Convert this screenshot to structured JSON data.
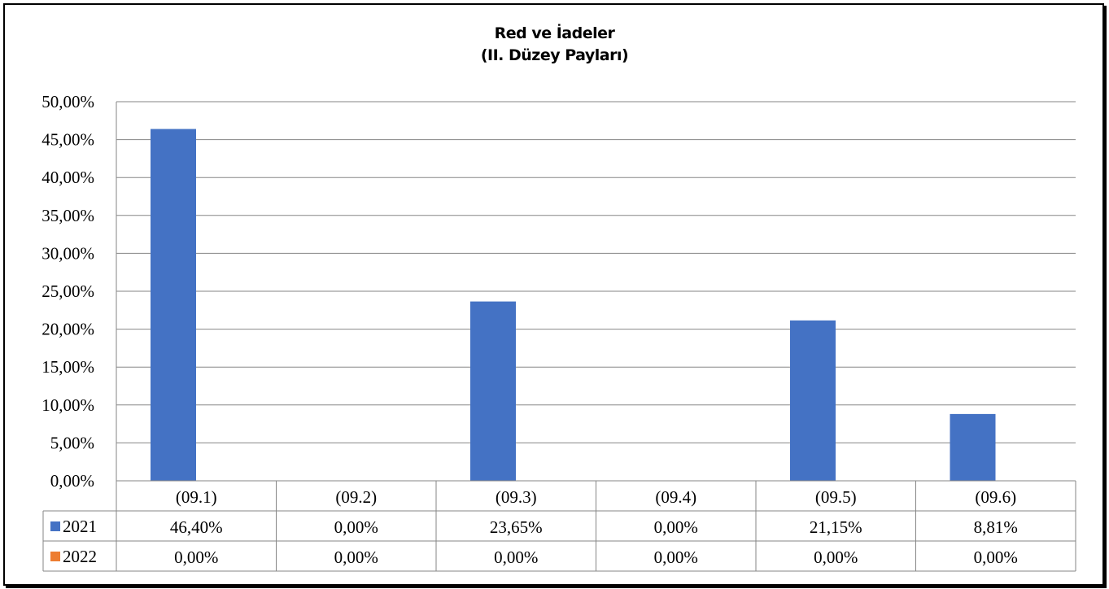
{
  "chart_data": {
    "type": "bar",
    "title": "Red ve İadeler",
    "subtitle": "(II. Düzey Payları)",
    "categories": [
      "(09.1)",
      "(09.2)",
      "(09.3)",
      "(09.4)",
      "(09.5)",
      "(09.6)"
    ],
    "series": [
      {
        "name": "2021",
        "color": "#4472c4",
        "values": [
          46.4,
          0.0,
          23.65,
          0.0,
          21.15,
          8.81
        ],
        "labels": [
          "46,40%",
          "0,00%",
          "23,65%",
          "0,00%",
          "21,15%",
          "8,81%"
        ]
      },
      {
        "name": "2022",
        "color": "#ed7d31",
        "values": [
          0.0,
          0.0,
          0.0,
          0.0,
          0.0,
          0.0
        ],
        "labels": [
          "0,00%",
          "0,00%",
          "0,00%",
          "0,00%",
          "0,00%",
          "0,00%"
        ]
      }
    ],
    "ylim": [
      0,
      50
    ],
    "yticks": [
      "0,00%",
      "5,00%",
      "10,00%",
      "15,00%",
      "20,00%",
      "25,00%",
      "30,00%",
      "35,00%",
      "40,00%",
      "45,00%",
      "50,00%"
    ],
    "grid": true,
    "legend": "data-table"
  }
}
